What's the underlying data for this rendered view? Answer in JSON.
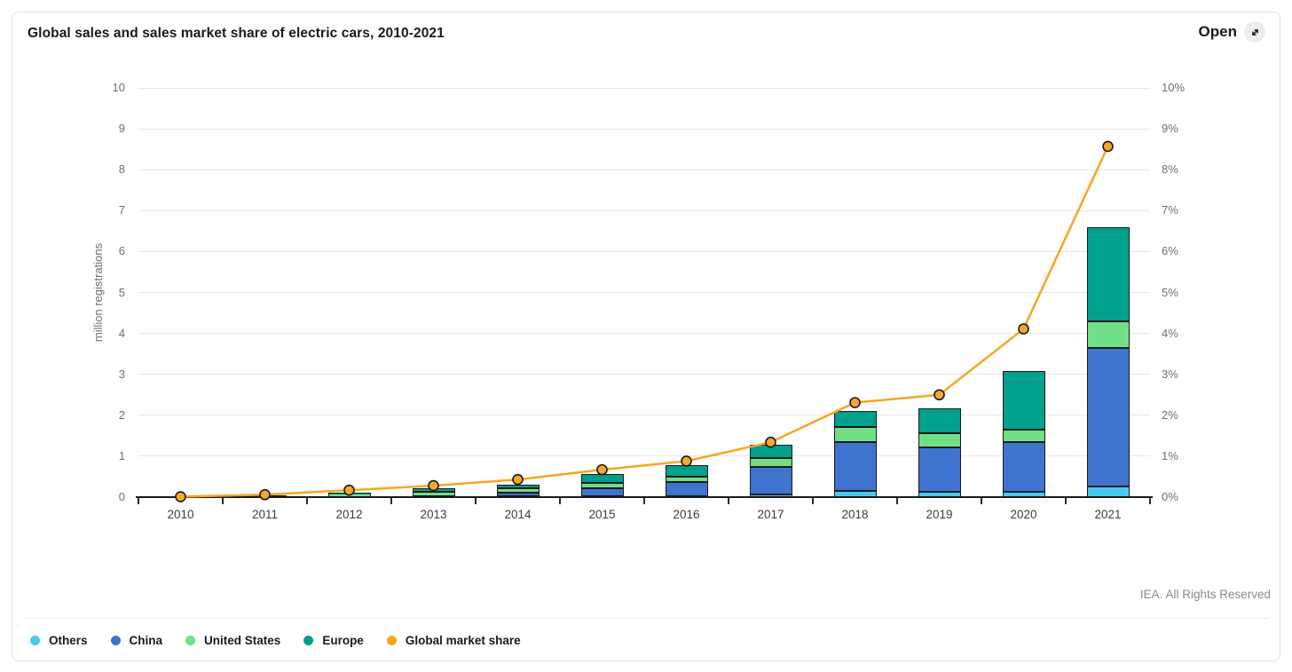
{
  "header": {
    "title": "Global sales and sales market share of electric cars, 2010-2021",
    "open_button": {
      "label": "Open"
    }
  },
  "footer": {
    "credit": "IEA. All Rights Reserved"
  },
  "colors": {
    "bar_border": "#1a1a1a",
    "gridline": "#e7e7e7",
    "axis_line": "#1a1a1a",
    "tick_label": "#6f6f6f",
    "category_label": "#3c3c3c",
    "line": "#F7A623",
    "marker_fill": "#F7A82C",
    "marker_stroke": "#1a1a1a"
  },
  "chart_data": {
    "type": "bar",
    "variant": "stacked-bars-with-line-overlay",
    "title": "Global sales and sales market share of electric cars, 2010-2021",
    "categories": [
      "2010",
      "2011",
      "2012",
      "2013",
      "2014",
      "2015",
      "2016",
      "2017",
      "2018",
      "2019",
      "2020",
      "2021"
    ],
    "series": [
      {
        "name": "Others",
        "color": "#45CBF2",
        "values": [
          0.002,
          0.005,
          0.01,
          0.01,
          0.02,
          0.02,
          0.03,
          0.06,
          0.16,
          0.14,
          0.12,
          0.27
        ]
      },
      {
        "name": "China",
        "color": "#3E74D0",
        "values": [
          0.002,
          0.005,
          0.01,
          0.02,
          0.08,
          0.2,
          0.33,
          0.68,
          1.19,
          1.07,
          1.23,
          3.38
        ]
      },
      {
        "name": "United States",
        "color": "#71DF87",
        "values": [
          0.002,
          0.02,
          0.04,
          0.1,
          0.11,
          0.12,
          0.13,
          0.22,
          0.37,
          0.35,
          0.29,
          0.65
        ]
      },
      {
        "name": "Europe",
        "color": "#00A08C",
        "values": [
          0.001,
          0.02,
          0.04,
          0.08,
          0.1,
          0.22,
          0.3,
          0.31,
          0.38,
          0.61,
          1.43,
          2.29
        ]
      }
    ],
    "line_series": {
      "name": "Global market share",
      "color": "#F7A623",
      "unit": "%",
      "values": [
        0.01,
        0.06,
        0.17,
        0.28,
        0.43,
        0.67,
        0.88,
        1.34,
        2.31,
        2.5,
        4.11,
        8.57
      ]
    },
    "left_axis": {
      "label": "million registrations",
      "ticks": [
        0,
        1,
        2,
        3,
        4,
        5,
        6,
        7,
        8,
        9,
        10
      ],
      "min": 0,
      "max": 10
    },
    "right_axis": {
      "ticks": [
        "0%",
        "1%",
        "2%",
        "3%",
        "4%",
        "5%",
        "6%",
        "7%",
        "8%",
        "9%",
        "10%"
      ],
      "min": 0,
      "max": 10
    },
    "grid": "horizontal",
    "legend_position": "bottom-left"
  }
}
